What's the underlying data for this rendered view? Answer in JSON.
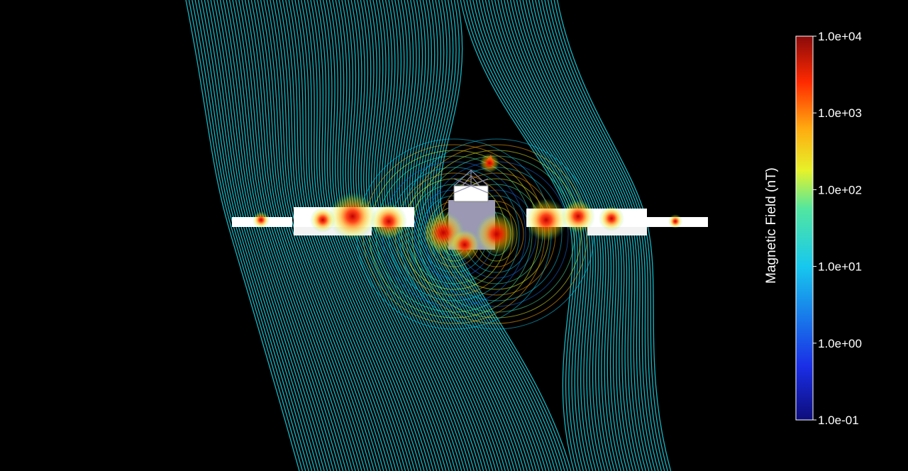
{
  "colorbar": {
    "title": "Magnetic Field (nT)",
    "scale": "log",
    "range": [
      0.1,
      10000
    ],
    "ticks": [
      {
        "label": "1.0e+04",
        "value": 10000
      },
      {
        "label": "1.0e+03",
        "value": 1000
      },
      {
        "label": "1.0e+02",
        "value": 100
      },
      {
        "label": "1.0e+01",
        "value": 10
      },
      {
        "label": "1.0e+00",
        "value": 1
      },
      {
        "label": "1.0e-01",
        "value": 0.1
      }
    ],
    "colormap": [
      "#0d0d7a",
      "#1a2ee6",
      "#17c8ee",
      "#52e6a0",
      "#e6f22a",
      "#ffaa10",
      "#ff2a00",
      "#8a0a0a"
    ]
  },
  "colors": {
    "background": "#000000",
    "field_line": "#19d6e6",
    "spacecraft_body": "#9a98b2",
    "solar_panel": "#ffffff"
  }
}
